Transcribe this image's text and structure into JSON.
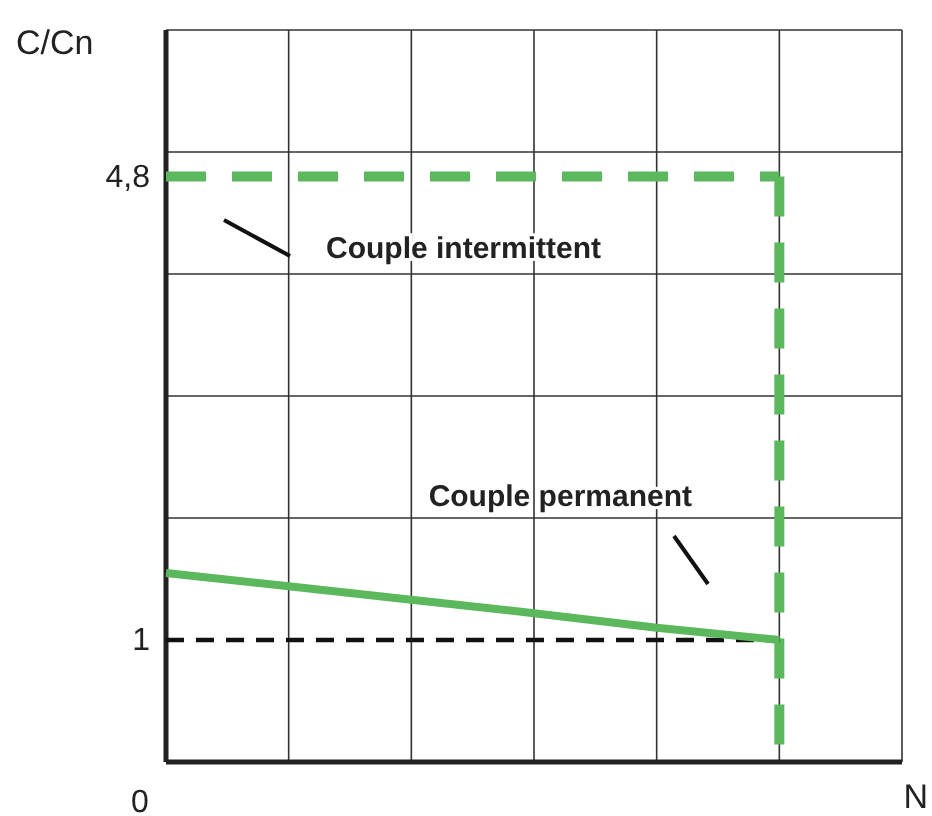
{
  "chart_data": {
    "type": "line",
    "xlabel": "N",
    "ylabel": "C/Cn",
    "categories": [
      null,
      null,
      null,
      null,
      null,
      null,
      null
    ],
    "ylim": [
      0,
      6
    ],
    "yticks": [
      {
        "value": 1,
        "label": "1"
      },
      {
        "value": 2,
        "label": null
      },
      {
        "value": 3,
        "label": null
      },
      {
        "value": 4,
        "label": null
      },
      {
        "value": 4.8,
        "label": "4,8"
      },
      {
        "value": 5,
        "label": null
      },
      {
        "value": 6,
        "label": null
      }
    ],
    "grid": true,
    "series": [
      {
        "color": "#5cb85c",
        "values": [
          4.8,
          4.8,
          4.8,
          4.8,
          4.8,
          4.8,
          null
        ],
        "line_style": "dashed"
      },
      {
        "color": "#111111",
        "values": [
          1,
          1,
          1,
          1,
          1,
          1,
          null
        ],
        "line_style": "dashed"
      },
      {
        "color": "#5cb85c",
        "values": [
          1.55,
          1.44,
          1.33,
          1.22,
          1.1,
          1,
          null
        ],
        "line_style": "solid"
      }
    ],
    "annotations": [
      "0",
      "Couple intermittent",
      "Couple permanent"
    ]
  }
}
